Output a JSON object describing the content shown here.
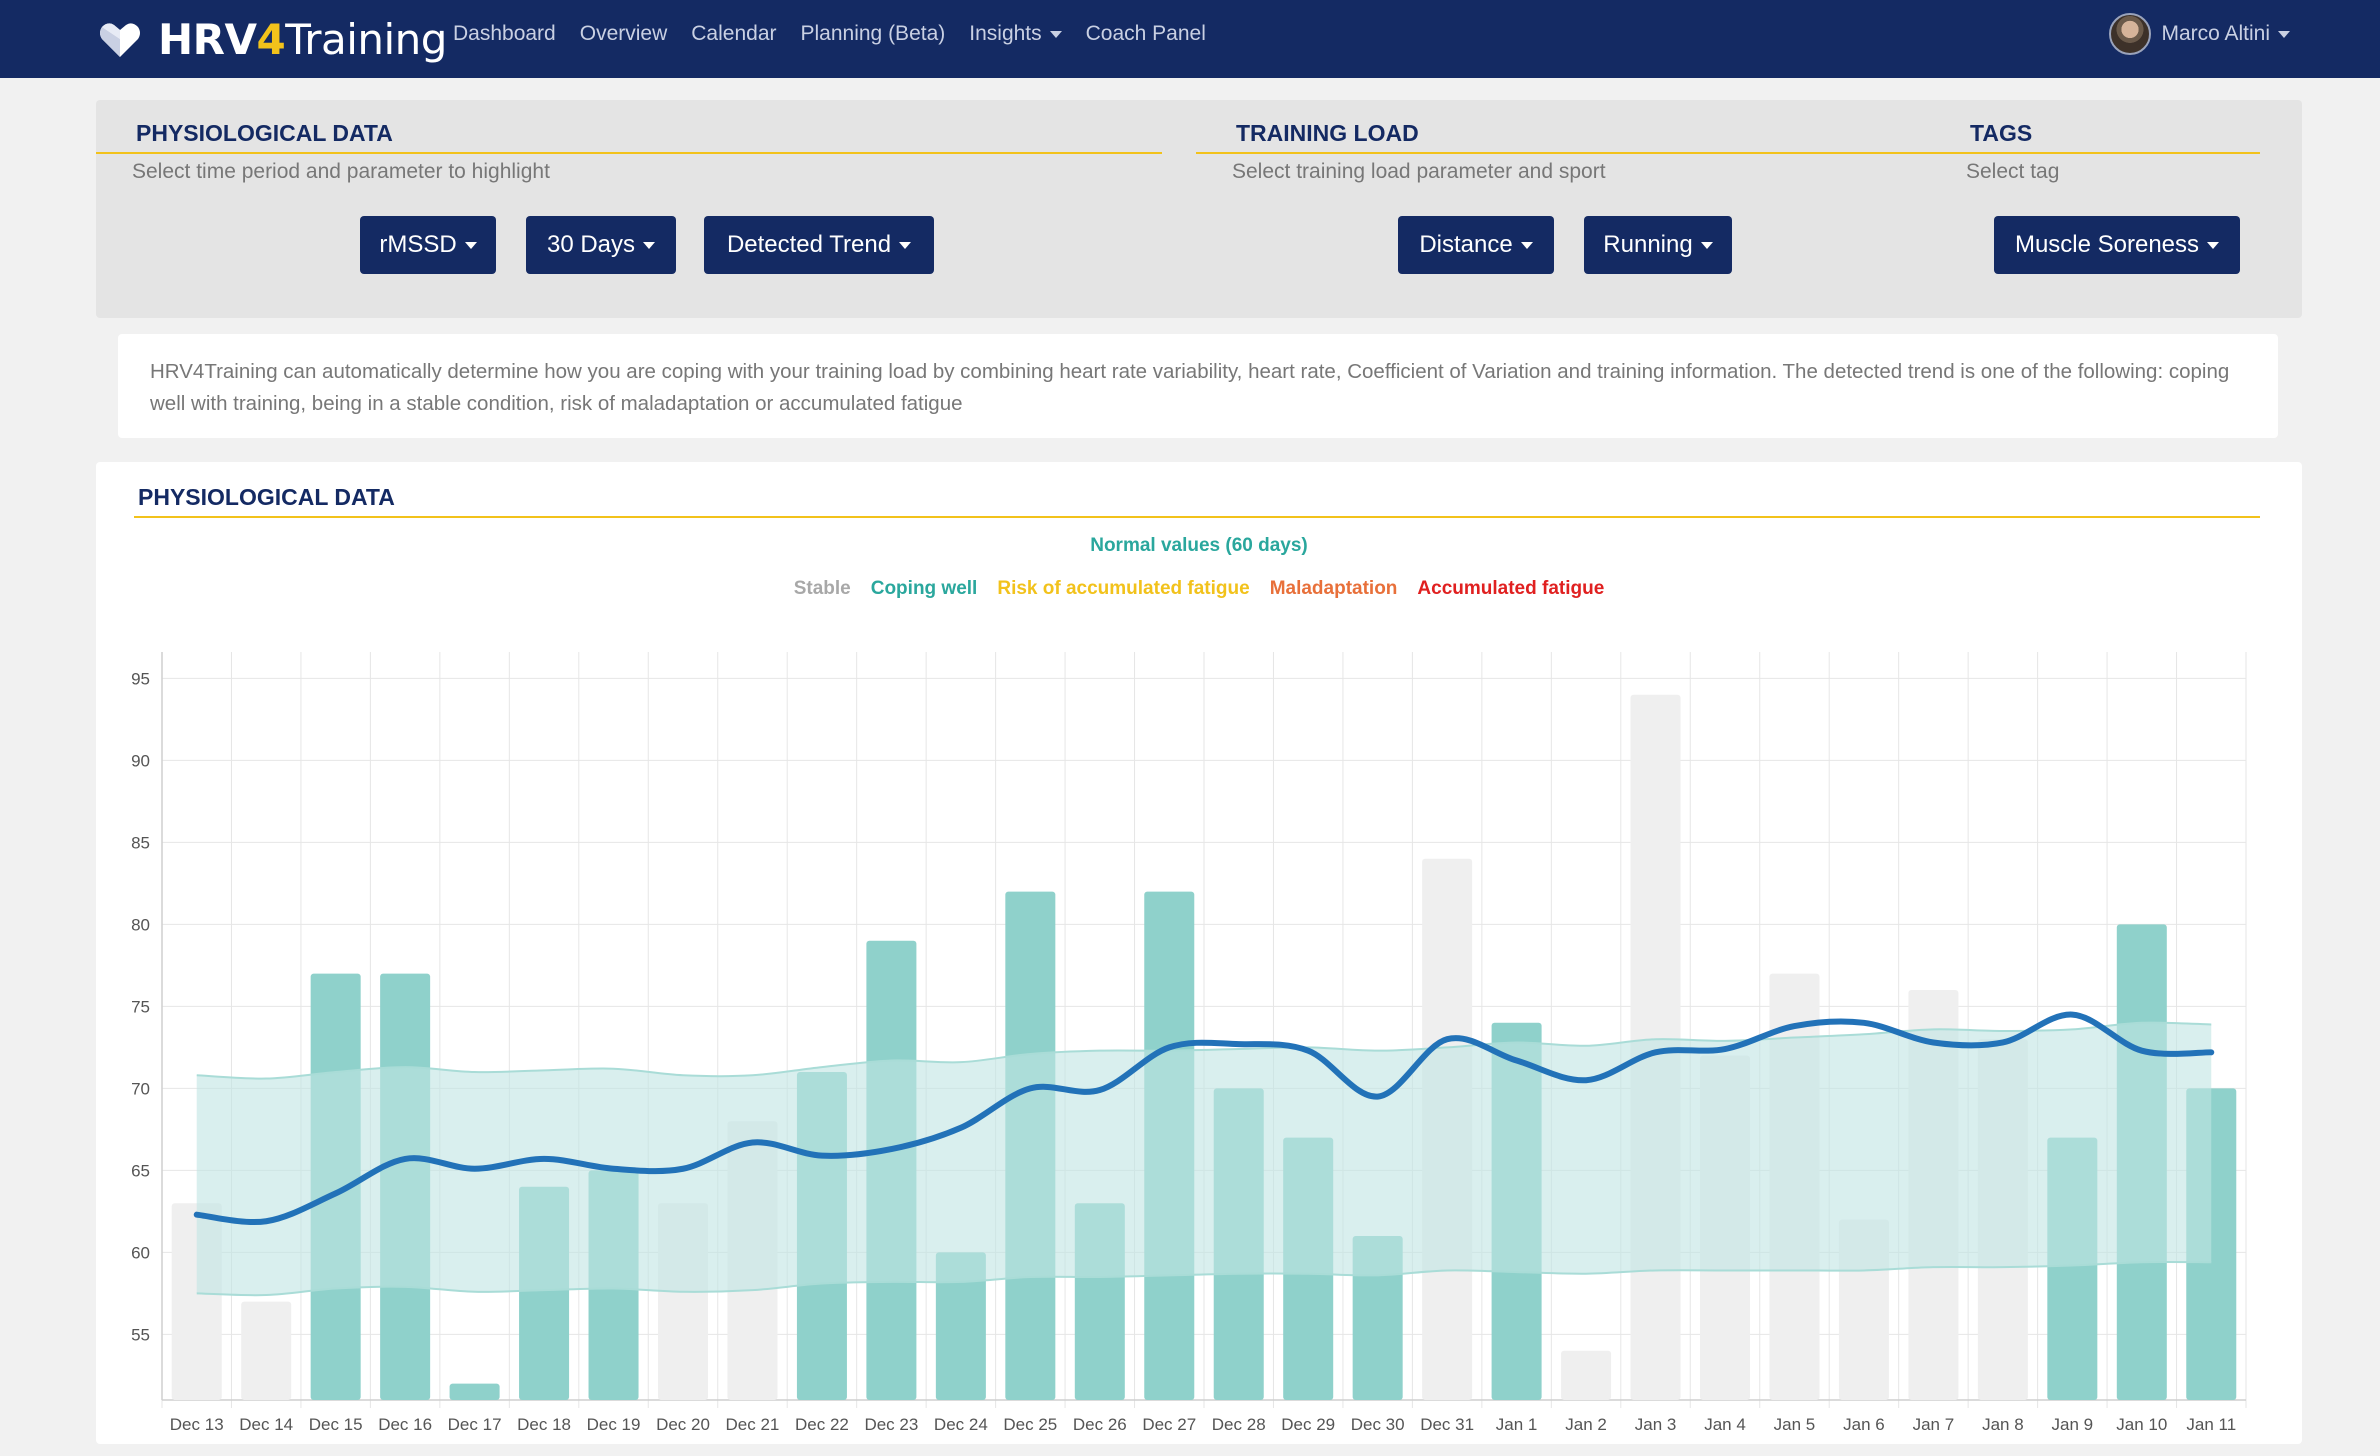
{
  "navbar": {
    "brand": {
      "bold": "HRV",
      "four": "4",
      "thin": "Training"
    },
    "links": [
      "Dashboard",
      "Overview",
      "Calendar",
      "Planning (Beta)",
      "Insights",
      "Coach Panel"
    ],
    "user_name": "Marco Altini"
  },
  "filters": {
    "physiological": {
      "title": "PHYSIOLOGICAL DATA",
      "subtitle": "Select time period and parameter to highlight",
      "buttons": [
        "rMSSD",
        "30 Days",
        "Detected Trend"
      ]
    },
    "training_load": {
      "title": "TRAINING LOAD",
      "subtitle": "Select training load parameter and sport",
      "buttons": [
        "Distance",
        "Running"
      ]
    },
    "tags": {
      "title": "TAGS",
      "subtitle": "Select tag",
      "buttons": [
        "Muscle Soreness"
      ]
    }
  },
  "description": "HRV4Training can automatically determine how you are coping with your training load by combining heart rate variability, heart rate, Coefficient of Variation and training information. The detected trend is one of the following: coping well with training, being in a stable condition, risk of maladaptation or accumulated fatigue",
  "chart_card": {
    "title": "PHYSIOLOGICAL DATA",
    "normal_label": "Normal values (60 days)",
    "legend": [
      {
        "label": "Stable",
        "color": "#a8a8a8"
      },
      {
        "label": "Coping well",
        "color": "#2aa79d"
      },
      {
        "label": "Risk of accumulated fatigue",
        "color": "#f2c21b"
      },
      {
        "label": "Maladaptation",
        "color": "#e8703a"
      },
      {
        "label": "Accumulated fatigue",
        "color": "#e02020"
      }
    ]
  },
  "chart_data": {
    "type": "bar",
    "ylim": [
      51,
      96
    ],
    "yticks": [
      55,
      60,
      65,
      70,
      75,
      80,
      85,
      90,
      95
    ],
    "grid": true,
    "categories": [
      "Dec 13",
      "Dec 14",
      "Dec 15",
      "Dec 16",
      "Dec 17",
      "Dec 18",
      "Dec 19",
      "Dec 20",
      "Dec 21",
      "Dec 22",
      "Dec 23",
      "Dec 24",
      "Dec 25",
      "Dec 26",
      "Dec 27",
      "Dec 28",
      "Dec 29",
      "Dec 30",
      "Dec 31",
      "Jan 1",
      "Jan 2",
      "Jan 3",
      "Jan 4",
      "Jan 5",
      "Jan 6",
      "Jan 7",
      "Jan 8",
      "Jan 9",
      "Jan 10",
      "Jan 11"
    ],
    "values": [
      63,
      57,
      77,
      77,
      52,
      64,
      65,
      63,
      68,
      71,
      79,
      60,
      82,
      63,
      82,
      70,
      67,
      61,
      84,
      74,
      54,
      94,
      72,
      77,
      62,
      76,
      73,
      67,
      80,
      70
    ],
    "status": [
      "stable",
      "stable",
      "coping",
      "coping",
      "coping",
      "coping",
      "coping",
      "stable",
      "stable",
      "coping",
      "coping",
      "coping",
      "coping",
      "coping",
      "coping",
      "coping",
      "coping",
      "coping",
      "stable",
      "coping",
      "stable",
      "stable",
      "stable",
      "stable",
      "stable",
      "stable",
      "stable",
      "coping",
      "coping",
      "coping"
    ],
    "status_colors": {
      "stable": "#efefef",
      "coping": "#8fd1cb"
    },
    "trend_line": {
      "color": "#2272b8",
      "values": [
        62.3,
        61.9,
        63.6,
        65.7,
        65.1,
        65.7,
        65.1,
        65.1,
        66.7,
        65.9,
        66.3,
        67.6,
        70.0,
        69.9,
        72.5,
        72.7,
        72.3,
        69.5,
        73.0,
        71.7,
        70.5,
        72.2,
        72.4,
        73.8,
        74.0,
        72.8,
        72.8,
        74.5,
        72.3,
        72.2
      ]
    },
    "normal_band": {
      "color": "#bfe5e2",
      "upper": [
        70.8,
        70.6,
        71.0,
        71.3,
        71.0,
        71.1,
        71.2,
        70.8,
        70.8,
        71.3,
        71.7,
        71.6,
        72.1,
        72.3,
        72.3,
        72.4,
        72.5,
        72.3,
        72.5,
        72.8,
        72.6,
        73.0,
        72.9,
        73.1,
        73.3,
        73.6,
        73.5,
        73.6,
        74.0,
        73.9
      ],
      "lower": [
        57.5,
        57.4,
        57.8,
        57.9,
        57.6,
        57.7,
        57.8,
        57.6,
        57.7,
        58.1,
        58.2,
        58.2,
        58.5,
        58.5,
        58.6,
        58.7,
        58.7,
        58.6,
        58.9,
        58.8,
        58.7,
        58.9,
        58.9,
        58.9,
        58.9,
        59.1,
        59.1,
        59.2,
        59.4,
        59.4
      ]
    }
  }
}
